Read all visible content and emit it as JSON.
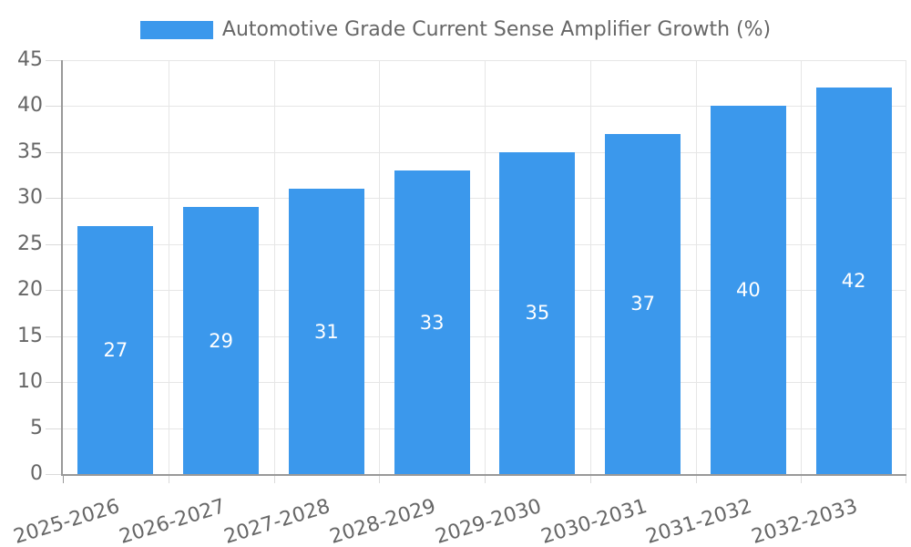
{
  "chart_data": {
    "type": "bar",
    "title": "Automotive Grade Current Sense Amplifier Growth (%)",
    "legend": {
      "label": "Automotive Grade Current Sense Amplifier Growth (%)",
      "position": "top"
    },
    "categories": [
      "2025-2026",
      "2026-2027",
      "2027-2028",
      "2028-2029",
      "2029-2030",
      "2030-2031",
      "2031-2032",
      "2032-2033"
    ],
    "values": [
      27,
      29,
      31,
      33,
      35,
      37,
      40,
      42
    ],
    "bar_value_labels": [
      "27",
      "29",
      "31",
      "33",
      "35",
      "37",
      "40",
      "42"
    ],
    "xlabel": "",
    "ylabel": "",
    "ylim": [
      0,
      45
    ],
    "ytick_step": 5,
    "ytick_labels": [
      "0",
      "5",
      "10",
      "15",
      "20",
      "25",
      "30",
      "35",
      "40",
      "45"
    ],
    "x_tick_rotation_deg": -17,
    "grid": true,
    "legend_position": "top",
    "colors": {
      "bar": "#3B98EC",
      "bar_label": "#FFFFFF",
      "axis_text": "#666666",
      "grid_line": "#E6E6E6",
      "axis_line": "#999999",
      "tick_mark": "#DADADA",
      "background": "#FFFFFF"
    }
  }
}
